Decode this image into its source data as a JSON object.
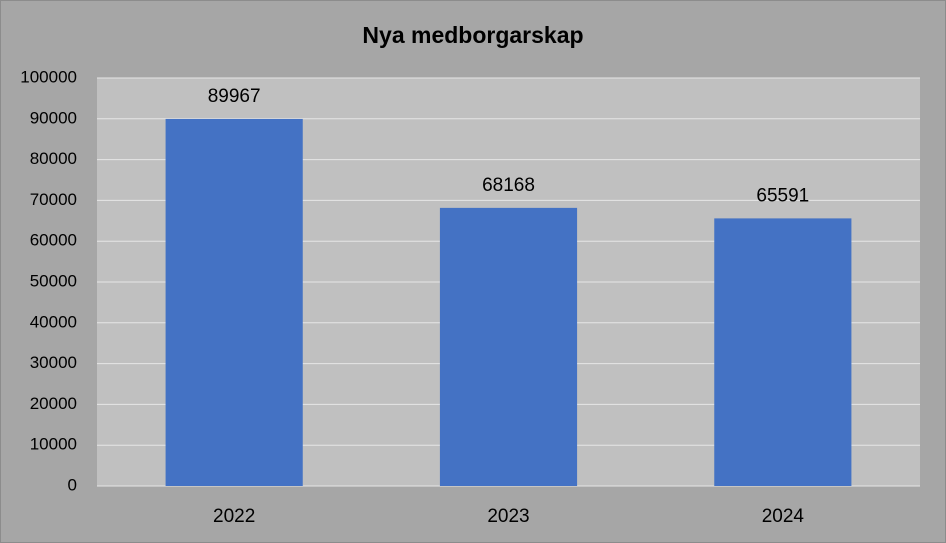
{
  "chart_data": {
    "type": "bar",
    "title": "Nya medborgarskap",
    "categories": [
      "2022",
      "2023",
      "2024"
    ],
    "values": [
      89967,
      68168,
      65591
    ],
    "color": "#4472c4",
    "ylim": [
      0,
      100000
    ],
    "yticks": [
      0,
      10000,
      20000,
      30000,
      40000,
      50000,
      60000,
      70000,
      80000,
      90000,
      100000
    ],
    "grid": true
  }
}
